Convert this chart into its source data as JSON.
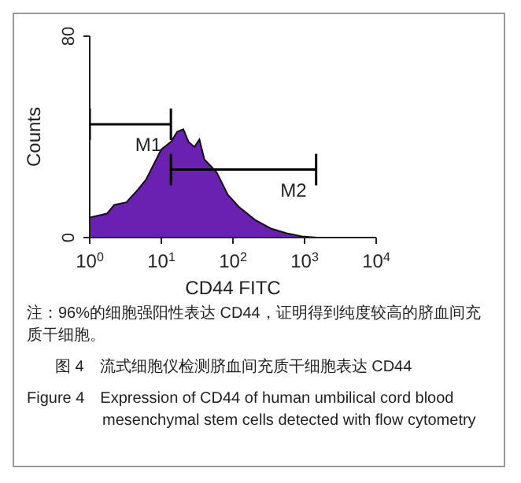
{
  "chart_data": {
    "type": "area",
    "xlabel": "CD44 FITC",
    "ylabel": "Counts",
    "log": "x",
    "xlim": [
      1,
      10000
    ],
    "xticks": [
      {
        "value": 1,
        "label": "10$^{0}$"
      },
      {
        "value": 10,
        "label": "10$^{1}$"
      },
      {
        "value": 100,
        "label": "10$^{2}$"
      },
      {
        "value": 1000,
        "label": "10$^{3}$"
      },
      {
        "value": 10000,
        "label": "10$^{4}$"
      }
    ],
    "ylim": [
      0,
      80
    ],
    "legend": "bottom left",
    "yticks": [
      0,
      80
    ],
    "series": [
      {
        "color": "#6a20b0",
        "x": [
          1,
          1.74,
          2.2,
          3.25,
          4.7,
          6.1,
          7.8,
          10,
          13.6,
          16.6,
          20.3,
          24,
          29,
          34,
          40,
          59,
          85,
          123,
          204,
          338,
          560,
          915,
          1510
        ],
        "values": [
          8,
          9.5,
          13,
          14,
          19,
          23,
          29,
          35,
          38,
          42,
          43,
          38,
          36,
          39,
          31,
          26,
          17,
          12,
          7,
          3.6,
          1.7,
          0.5,
          0
        ]
      },
      {
        "type": "line",
        "name": "M1",
        "color": "#000000",
        "x": [
          1,
          13.6
        ],
        "values": [
          45,
          45
        ]
      },
      {
        "type": "line",
        "name": "M2",
        "color": "#000000",
        "x": [
          13.6,
          1450
        ],
        "values": [
          27,
          27
        ]
      }
    ],
    "annotations": [
      "注：96%的细胞强阳性表达 CD44，证明得到纯度较高的脐血间充质干细胞。",
      "图 4　流式细胞仪检测脐血间充质干细胞表达 CD44",
      "Figure 4　Expression of CD44 of human umbilical cord blood mesenchymal stem cells detected with flow cytometry"
    ]
  }
}
